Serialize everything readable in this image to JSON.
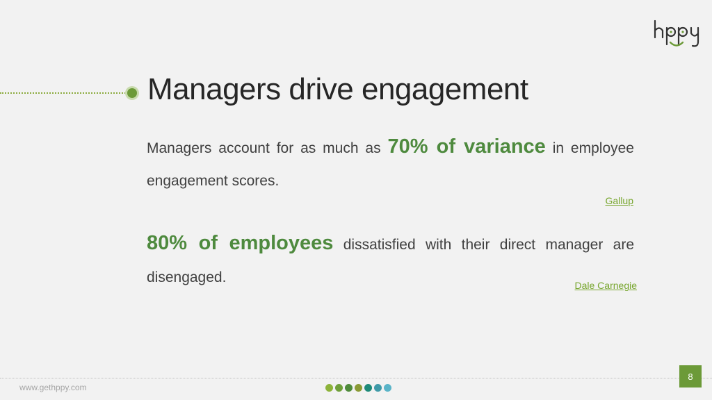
{
  "brand": {
    "logo_text": "hppy",
    "accent_color": "#6c9a38",
    "highlight_color": "#4e8a3e"
  },
  "slide": {
    "title": "Managers drive engagement",
    "stat1": {
      "pre": "Managers account for as much as ",
      "highlight": "70% of variance",
      "post": " in employee engagement scores.",
      "source": "Gallup"
    },
    "stat2": {
      "highlight": "80% of employees",
      "post": " dissatisfied with their direct manager are disengaged.",
      "source": "Dale Carnegie"
    }
  },
  "footer": {
    "website": "www.gethppy.com",
    "page_number": "8",
    "dot_colors": [
      "#8db33a",
      "#6f9f3a",
      "#4f8b3b",
      "#8a9a35",
      "#1d8a79",
      "#3f9aa8",
      "#5ab4c8"
    ]
  }
}
